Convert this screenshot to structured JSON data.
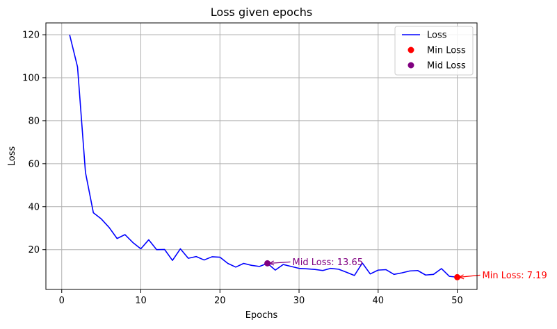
{
  "chart_data": {
    "type": "line",
    "title": "Loss given epochs",
    "xlabel": "Epochs",
    "ylabel": "Loss",
    "xlim": [
      -2.0,
      52.5
    ],
    "ylim": [
      1.5,
      125.5
    ],
    "xticks": [
      0,
      10,
      20,
      30,
      40,
      50
    ],
    "yticks": [
      20,
      40,
      60,
      80,
      100,
      120
    ],
    "grid": true,
    "legend_position": "top-right",
    "series": [
      {
        "name": "Loss",
        "color": "#0000ff",
        "x": [
          1,
          2,
          3,
          4,
          5,
          6,
          7,
          8,
          9,
          10,
          11,
          12,
          13,
          14,
          15,
          16,
          17,
          18,
          19,
          20,
          21,
          22,
          23,
          24,
          25,
          26,
          27,
          28,
          29,
          30,
          31,
          32,
          33,
          34,
          35,
          36,
          37,
          38,
          39,
          40,
          41,
          42,
          43,
          44,
          45,
          46,
          47,
          48,
          49,
          50
        ],
        "y": [
          120,
          105,
          56,
          37.2,
          34.3,
          30.3,
          25.2,
          27.0,
          23.3,
          20.4,
          24.6,
          20.0,
          20.1,
          15.0,
          20.4,
          16.0,
          16.8,
          15.2,
          16.7,
          16.5,
          13.6,
          11.9,
          13.6,
          12.7,
          12.2,
          13.65,
          10.5,
          13.1,
          12.2,
          11.3,
          11.1,
          10.8,
          10.3,
          11.3,
          10.9,
          9.5,
          8.0,
          13.8,
          8.7,
          10.5,
          10.7,
          8.5,
          9.2,
          10.1,
          10.3,
          8.2,
          8.5,
          11.2,
          7.6,
          7.19
        ]
      }
    ],
    "markers": [
      {
        "name": "Min Loss",
        "color": "#ff0000",
        "x": 50,
        "y": 7.19,
        "annotation": "Min Loss: 7.19"
      },
      {
        "name": "Mid Loss",
        "color": "#800080",
        "x": 26,
        "y": 13.65,
        "annotation": "Mid Loss: 13.65"
      }
    ],
    "legend": [
      {
        "label": "Loss",
        "kind": "line",
        "color": "#0000ff"
      },
      {
        "label": "Min Loss",
        "kind": "dot",
        "color": "#ff0000"
      },
      {
        "label": "Mid Loss",
        "kind": "dot",
        "color": "#800080"
      }
    ]
  }
}
